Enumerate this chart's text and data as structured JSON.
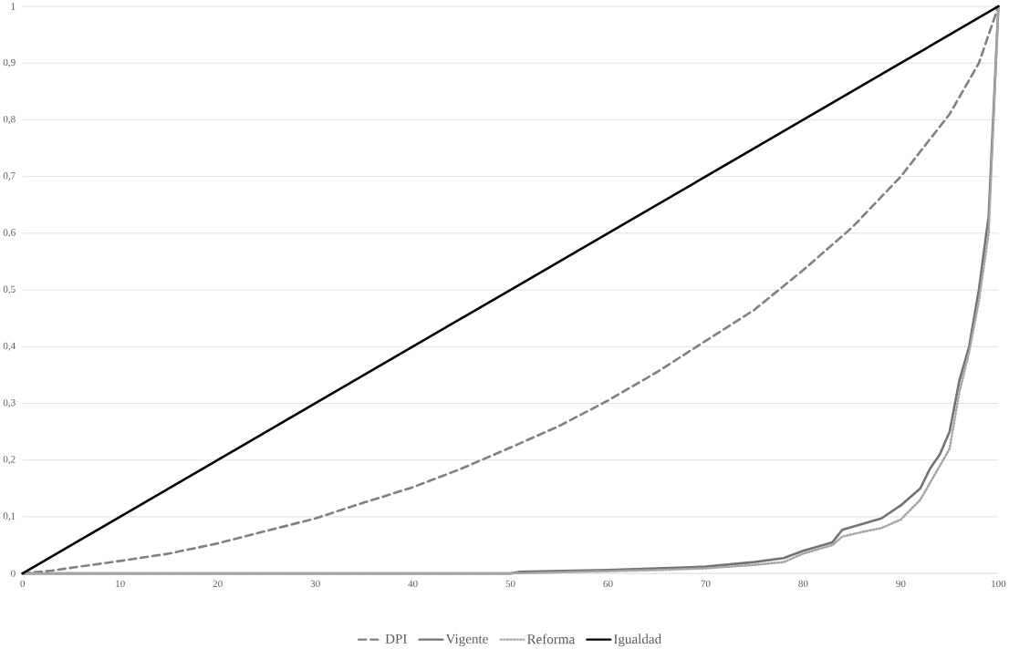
{
  "chart_data": {
    "type": "line",
    "xlim": [
      0,
      100
    ],
    "ylim": [
      0,
      1
    ],
    "xticks": [
      0,
      10,
      20,
      30,
      40,
      50,
      60,
      70,
      80,
      90,
      100
    ],
    "yticks": [
      0,
      {
        "value": 0.1,
        "label": "0,1"
      },
      {
        "value": 0.2,
        "label": "0,2"
      },
      {
        "value": 0.3,
        "label": "0,3"
      },
      {
        "value": 0.4,
        "label": "0,4"
      },
      {
        "value": 0.5,
        "label": "0,5"
      },
      {
        "value": 0.6,
        "label": "0,6"
      },
      {
        "value": 0.7,
        "label": "0,7"
      },
      {
        "value": 0.8,
        "label": "0,8"
      },
      {
        "value": 0.9,
        "label": "0,9"
      },
      1
    ],
    "grid": "y",
    "legend": "bottom",
    "marker": "none",
    "series": [
      {
        "name": "DPI",
        "color": "#808080",
        "line_style": "dashed",
        "x": [
          0,
          3,
          5,
          10,
          15,
          20,
          25,
          30,
          35,
          40,
          45,
          50,
          55,
          60,
          65,
          70,
          75,
          80,
          85,
          90,
          95,
          98,
          100
        ],
        "values": [
          0,
          0.005,
          0.01,
          0.022,
          0.035,
          0.053,
          0.075,
          0.097,
          0.125,
          0.152,
          0.185,
          0.222,
          0.26,
          0.305,
          0.355,
          0.41,
          0.465,
          0.535,
          0.61,
          0.7,
          0.81,
          0.9,
          1
        ]
      },
      {
        "name": "Vigente",
        "color": "#767171",
        "line_style": "solid",
        "x": [
          0,
          50,
          51,
          60,
          65,
          70,
          75,
          78,
          80,
          83,
          84,
          86,
          88,
          90,
          92,
          93,
          94,
          95,
          96,
          97,
          98,
          99,
          100
        ],
        "values": [
          0,
          0,
          0.003,
          0.006,
          0.009,
          0.012,
          0.02,
          0.027,
          0.04,
          0.055,
          0.077,
          0.087,
          0.097,
          0.12,
          0.15,
          0.185,
          0.21,
          0.25,
          0.34,
          0.4,
          0.5,
          0.63,
          1
        ]
      },
      {
        "name": "Reforma",
        "color": "#a6a6a6",
        "line_style": "dotted",
        "x": [
          0,
          50,
          60,
          65,
          70,
          75,
          78,
          80,
          83,
          84,
          86,
          88,
          90,
          92,
          93,
          94,
          95,
          96,
          97,
          98,
          99,
          100
        ],
        "values": [
          0,
          0,
          0.004,
          0.006,
          0.009,
          0.015,
          0.02,
          0.035,
          0.05,
          0.065,
          0.073,
          0.08,
          0.095,
          0.13,
          0.16,
          0.19,
          0.22,
          0.32,
          0.39,
          0.48,
          0.6,
          1
        ]
      },
      {
        "name": "Igualdad",
        "color": "#000000",
        "line_style": "solid",
        "x": [
          0,
          10,
          20,
          30,
          40,
          50,
          60,
          70,
          80,
          90,
          100
        ],
        "values": [
          0,
          0.1,
          0.2,
          0.3,
          0.4,
          0.5,
          0.6,
          0.7,
          0.8,
          0.9,
          1
        ]
      }
    ]
  }
}
